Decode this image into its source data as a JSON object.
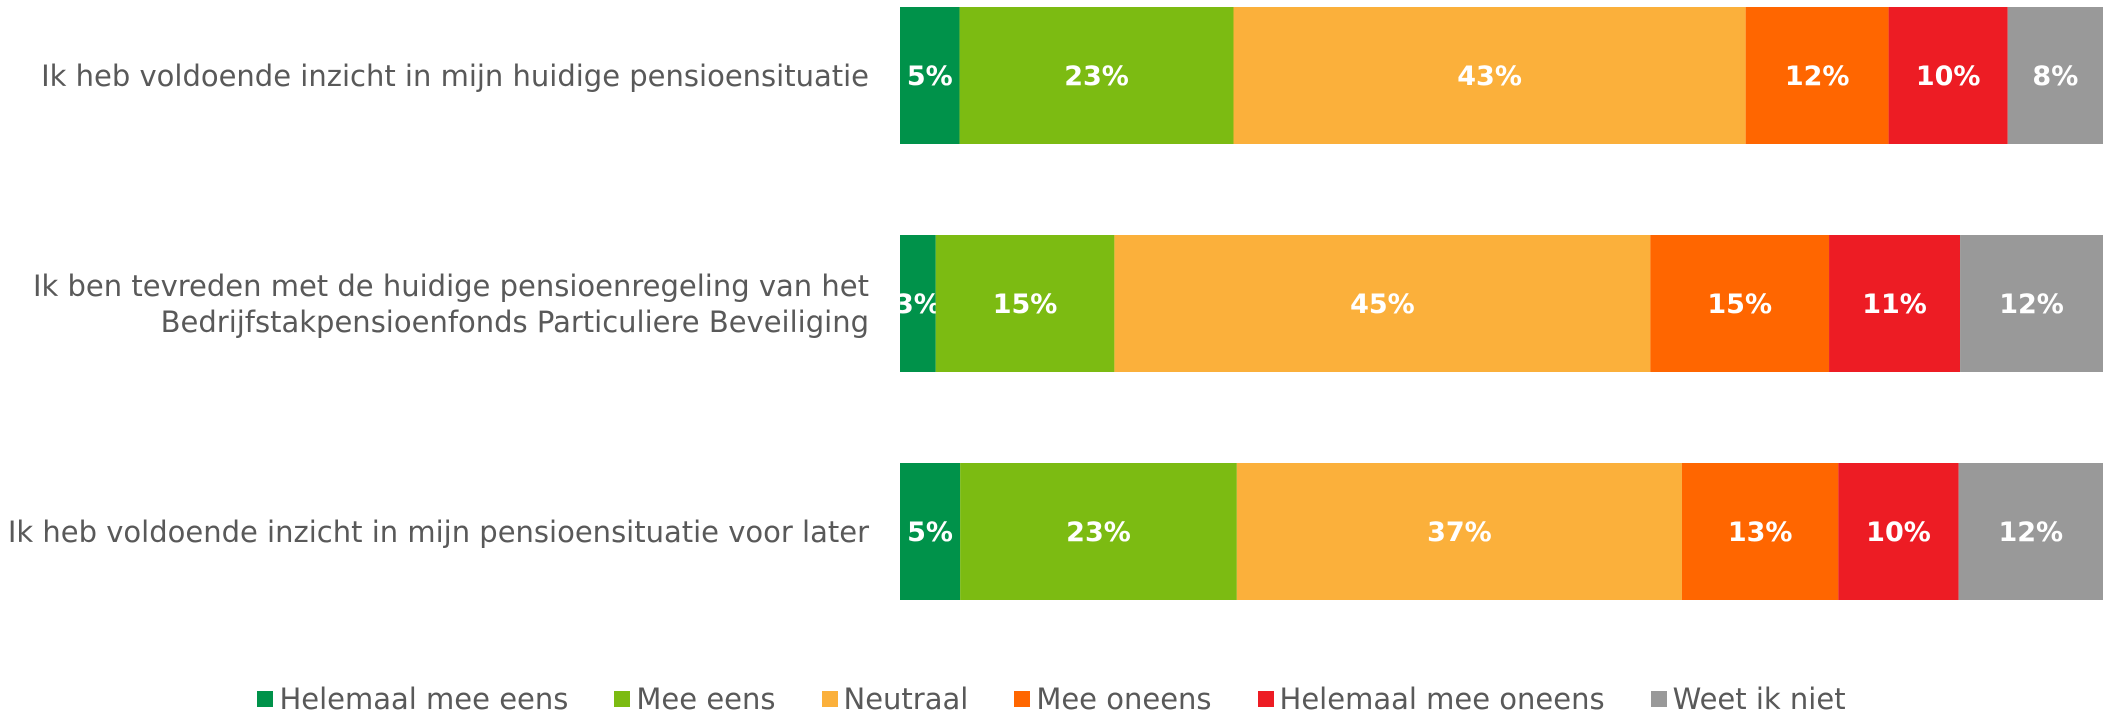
{
  "chart_data": {
    "type": "stacked-bar-horizontal",
    "categories": [
      "Ik heb voldoende inzicht in mijn huidige pensioensituatie",
      "Ik ben tevreden met de huidige pensioenregeling van het\nBedrijfstakpensioenfonds Particuliere Beveiliging",
      "Ik heb voldoende inzicht in mijn pensioensituatie voor later"
    ],
    "series": [
      {
        "name": "Helemaal mee eens",
        "color": "#00924a",
        "values": [
          5,
          3,
          5
        ],
        "value_labels": [
          "5%",
          "3%",
          "5%"
        ]
      },
      {
        "name": "Mee eens",
        "color": "#7cbb12",
        "values": [
          23,
          15,
          23
        ],
        "value_labels": [
          "23%",
          "15%",
          "23%"
        ]
      },
      {
        "name": "Neutraal",
        "color": "#fbb03b",
        "values": [
          43,
          45,
          37
        ],
        "value_labels": [
          "43%",
          "45%",
          "37%"
        ]
      },
      {
        "name": "Mee oneens",
        "color": "#ff6600",
        "values": [
          12,
          15,
          13
        ],
        "value_labels": [
          "12%",
          "15%",
          "13%"
        ]
      },
      {
        "name": "Helemaal mee oneens",
        "color": "#ed1c24",
        "values": [
          10,
          11,
          10
        ],
        "value_labels": [
          "10%",
          "11%",
          "10%"
        ]
      },
      {
        "name": "Weet ik niet",
        "color": "#999999",
        "values": [
          8,
          12,
          12
        ],
        "value_labels": [
          "8%",
          "12%",
          "12%"
        ]
      }
    ]
  }
}
